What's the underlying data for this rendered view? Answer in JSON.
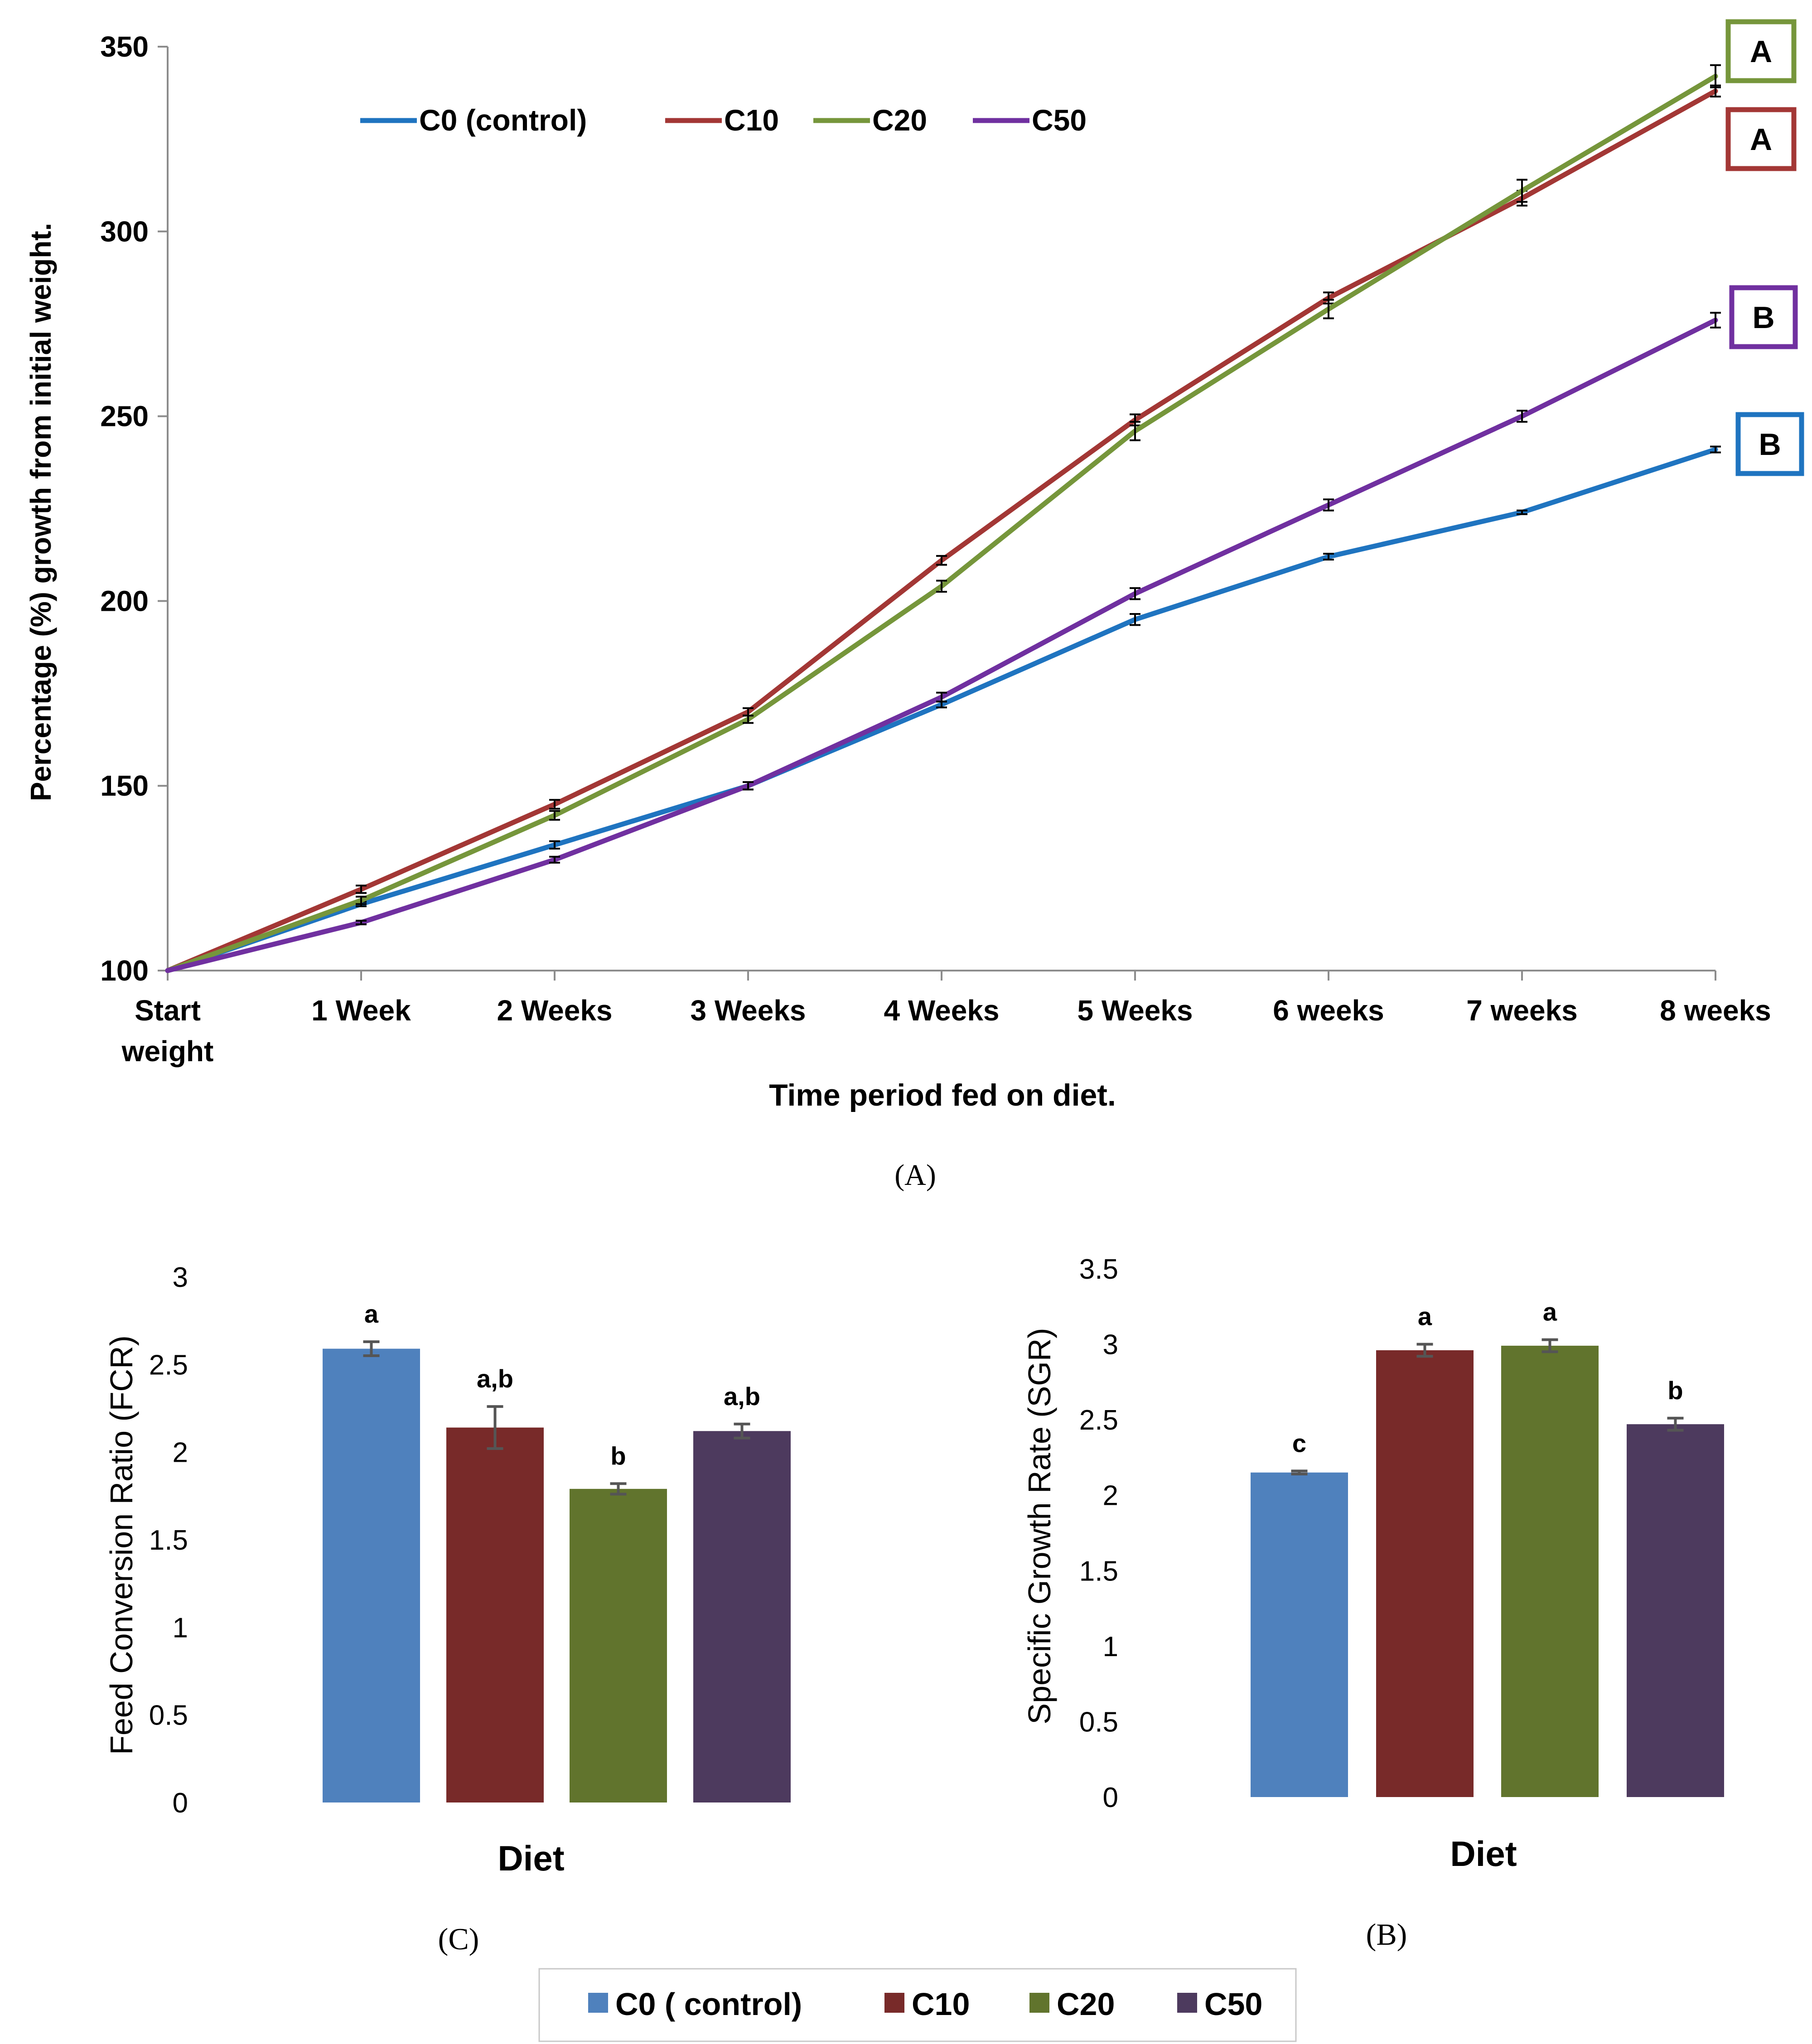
{
  "chart_data": [
    {
      "id": "A",
      "type": "line",
      "panel_label": "(A)",
      "title": "",
      "xlabel": "Time period fed on diet.",
      "ylabel": "Percentage (%) growth from initial weight.",
      "ylim": [
        100,
        350
      ],
      "yticks": [
        "100",
        "150",
        "200",
        "250",
        "300",
        "350"
      ],
      "categories": [
        "Start weight",
        "1 Week",
        "2 Weeks",
        "3 Weeks",
        "4 Weeks",
        "5 Weeks",
        "6 weeks",
        "7 weeks",
        "8 weeks"
      ],
      "legend_position": "top-left",
      "series": [
        {
          "name": "C0 (control)",
          "color": "#1F74C0",
          "letter": "B",
          "values": [
            100,
            118,
            134,
            150,
            172,
            195,
            212,
            224,
            241
          ],
          "errors": [
            0,
            0.6,
            1,
            1,
            0.8,
            1.5,
            0.8,
            0.5,
            0.8
          ]
        },
        {
          "name": "C10",
          "color": "#A33735",
          "letter": "A",
          "values": [
            100,
            122,
            145,
            170,
            211,
            249,
            282,
            309,
            338
          ],
          "errors": [
            0,
            1,
            1.2,
            1,
            1.2,
            1.5,
            1.5,
            2,
            1.5
          ]
        },
        {
          "name": "C20",
          "color": "#76963B",
          "letter": "A",
          "values": [
            100,
            119,
            142,
            168,
            204,
            246,
            279,
            311,
            342
          ],
          "errors": [
            0,
            1,
            1.2,
            1,
            1.5,
            2.5,
            2.5,
            3,
            3
          ]
        },
        {
          "name": "C50",
          "color": "#7030A0",
          "letter": "B",
          "values": [
            100,
            113,
            130,
            150,
            174,
            202,
            226,
            250,
            276
          ],
          "errors": [
            0,
            0.5,
            0.8,
            1,
            1.2,
            1.5,
            1.5,
            1.5,
            2
          ]
        }
      ]
    },
    {
      "id": "C",
      "type": "bar",
      "panel_label": "(C)",
      "xlabel": "Diet",
      "ylabel": "Feed Conversion Ratio (FCR)",
      "ylim": [
        0,
        3
      ],
      "yticks": [
        "0",
        "0.5",
        "1",
        "1.5",
        "2",
        "2.5",
        "3"
      ],
      "categories": [
        "C0 ( control)",
        "C10",
        "C20",
        "C50"
      ],
      "values": [
        2.59,
        2.14,
        1.79,
        2.12
      ],
      "errors": [
        0.04,
        0.12,
        0.03,
        0.04
      ],
      "letters": [
        "a",
        "a,b",
        "b",
        "a,b"
      ],
      "colors": [
        "#4F81BD",
        "#782A29",
        "#61742D",
        "#4D3A5E"
      ]
    },
    {
      "id": "B",
      "type": "bar",
      "panel_label": "(B)",
      "xlabel": "Diet",
      "ylabel": "Specific Growth Rate (SGR)",
      "ylim": [
        0,
        3.5
      ],
      "yticks": [
        "0",
        "0.5",
        "1",
        "1.5",
        "2",
        "2.5",
        "3",
        "3.5"
      ],
      "categories": [
        "C0 ( control)",
        "C10",
        "C20",
        "C50"
      ],
      "values": [
        2.15,
        2.96,
        2.99,
        2.47
      ],
      "errors": [
        0.01,
        0.04,
        0.04,
        0.04
      ],
      "letters": [
        "c",
        "a",
        "a",
        "b"
      ],
      "colors": [
        "#4F81BD",
        "#782A29",
        "#61742D",
        "#4D3A5E"
      ]
    }
  ],
  "bottom_legend": {
    "items": [
      {
        "label": "C0 ( control)",
        "color": "#4F81BD"
      },
      {
        "label": "C10",
        "color": "#782A29"
      },
      {
        "label": "C20",
        "color": "#61742D"
      },
      {
        "label": "C50",
        "color": "#4D3A5E"
      }
    ]
  }
}
